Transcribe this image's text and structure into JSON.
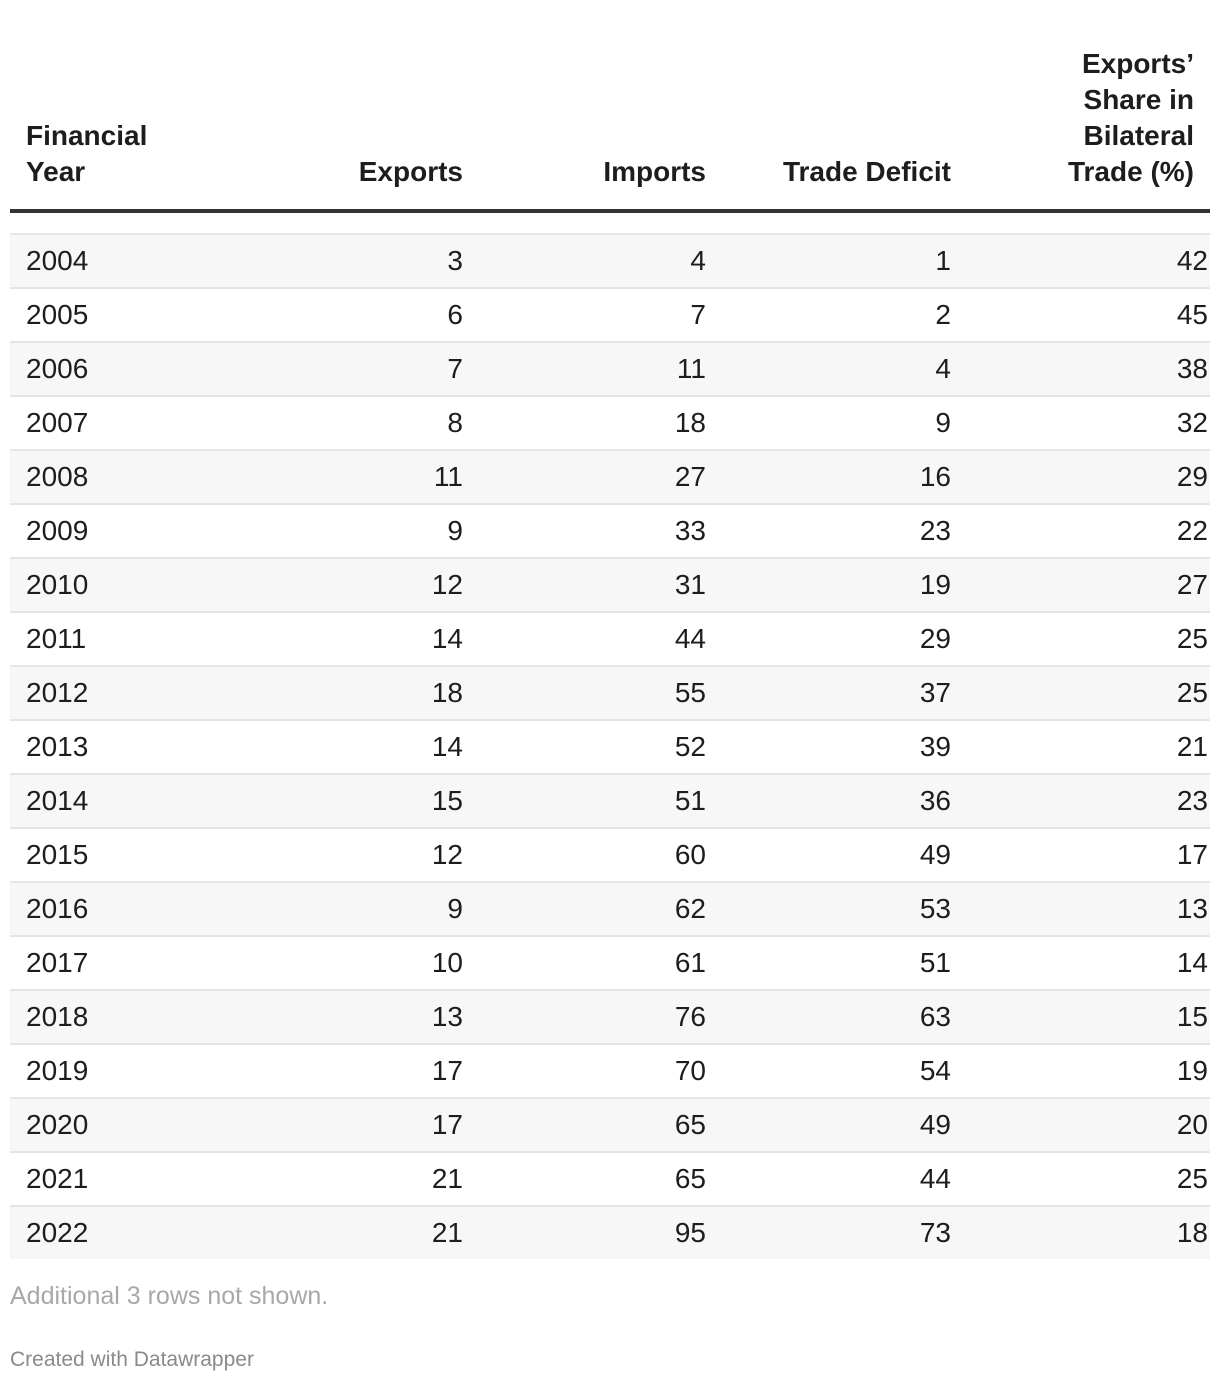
{
  "chart_data": {
    "type": "table",
    "columns": [
      "Financial Year",
      "Exports",
      "Imports",
      "Trade Deficit",
      "Exports’ Share in Bilateral Trade (%)"
    ],
    "header_lines": [
      [
        "Financial",
        "Year"
      ],
      [
        "Exports"
      ],
      [
        "Imports"
      ],
      [
        "Trade Deficit"
      ],
      [
        "Exports’",
        "Share in",
        "Bilateral",
        "Trade (%)"
      ]
    ],
    "rows": [
      [
        "2004",
        "3",
        "4",
        "1",
        "42"
      ],
      [
        "2005",
        "6",
        "7",
        "2",
        "45"
      ],
      [
        "2006",
        "7",
        "11",
        "4",
        "38"
      ],
      [
        "2007",
        "8",
        "18",
        "9",
        "32"
      ],
      [
        "2008",
        "11",
        "27",
        "16",
        "29"
      ],
      [
        "2009",
        "9",
        "33",
        "23",
        "22"
      ],
      [
        "2010",
        "12",
        "31",
        "19",
        "27"
      ],
      [
        "2011",
        "14",
        "44",
        "29",
        "25"
      ],
      [
        "2012",
        "18",
        "55",
        "37",
        "25"
      ],
      [
        "2013",
        "14",
        "52",
        "39",
        "21"
      ],
      [
        "2014",
        "15",
        "51",
        "36",
        "23"
      ],
      [
        "2015",
        "12",
        "60",
        "49",
        "17"
      ],
      [
        "2016",
        "9",
        "62",
        "53",
        "13"
      ],
      [
        "2017",
        "10",
        "61",
        "51",
        "14"
      ],
      [
        "2018",
        "13",
        "76",
        "63",
        "15"
      ],
      [
        "2019",
        "17",
        "70",
        "54",
        "19"
      ],
      [
        "2020",
        "17",
        "65",
        "49",
        "20"
      ],
      [
        "2021",
        "21",
        "65",
        "44",
        "25"
      ],
      [
        "2022",
        "21",
        "95",
        "73",
        "18"
      ]
    ]
  },
  "footer": {
    "note": "Additional 3 rows not shown.",
    "credit": "Created with Datawrapper"
  },
  "colors": {
    "text": "#1d1d1d",
    "header_rule": "#333333",
    "row_stripe": "#f7f7f7",
    "row_rule": "#e5e5e5",
    "note": "#a8a8a8"
  }
}
